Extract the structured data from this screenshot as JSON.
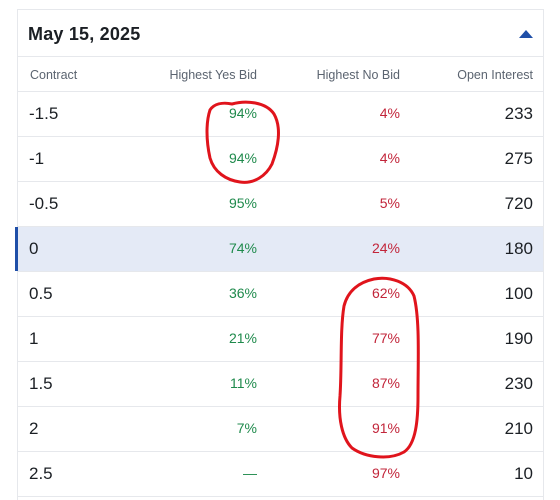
{
  "header": {
    "date": "May 15, 2025",
    "collapse_icon": "triangle-up-icon",
    "accent_color": "#1f4fa8"
  },
  "columns": {
    "contract": "Contract",
    "yes": "Highest Yes Bid",
    "no": "Highest No Bid",
    "open_interest": "Open Interest"
  },
  "rows": [
    {
      "contract": "-1.5",
      "yes": "94%",
      "no": "4%",
      "oi": "233"
    },
    {
      "contract": "-1",
      "yes": "94%",
      "no": "4%",
      "oi": "275"
    },
    {
      "contract": "-0.5",
      "yes": "95%",
      "no": "5%",
      "oi": "720"
    },
    {
      "contract": "0",
      "yes": "74%",
      "no": "24%",
      "oi": "180"
    },
    {
      "contract": "0.5",
      "yes": "36%",
      "no": "62%",
      "oi": "100"
    },
    {
      "contract": "1",
      "yes": "21%",
      "no": "77%",
      "oi": "190"
    },
    {
      "contract": "1.5",
      "yes": "11%",
      "no": "87%",
      "oi": "230"
    },
    {
      "contract": "2",
      "yes": "7%",
      "no": "91%",
      "oi": "210"
    },
    {
      "contract": "2.5",
      "yes": "—",
      "no": "97%",
      "oi": "10"
    }
  ],
  "selected_row": "0",
  "colors": {
    "yes": "#1f8a4c",
    "no": "#c2253a",
    "annotation": "#e0141c",
    "selected_bg": "#e4eaf6"
  }
}
